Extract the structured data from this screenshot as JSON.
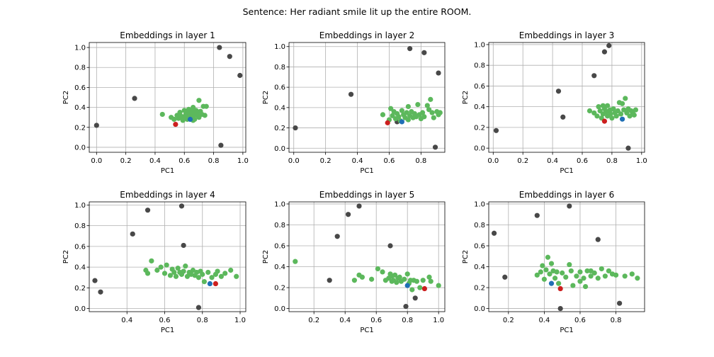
{
  "suptitle": "Sentence: Her radiant smile lit up the entire ROOM.",
  "colors": {
    "grey": "#484848",
    "green": "#5cb85c",
    "red": "#cc1f1f",
    "blue": "#1f6fb5",
    "grid": "#b0b0b0"
  },
  "chart_data": [
    {
      "type": "scatter",
      "title": "Embeddings in layer 1",
      "xlabel": "PC1",
      "ylabel": "PC2",
      "xlim": [
        -0.05,
        1.02
      ],
      "ylim": [
        -0.05,
        1.05
      ],
      "xticks": [
        0.0,
        0.2,
        0.4,
        0.6,
        0.8,
        1.0
      ],
      "xticklabels": [
        "0.0",
        "0.2",
        "0.4",
        "0.6",
        "0.8",
        "1.0"
      ],
      "yticks": [
        0.0,
        0.2,
        0.4,
        0.6,
        0.8,
        1.0
      ],
      "yticklabels": [
        "0.0",
        "0.2",
        "0.4",
        "0.6",
        "0.8",
        "1.0"
      ],
      "grid": true,
      "grey": [
        [
          0.0,
          0.22
        ],
        [
          0.26,
          0.49
        ],
        [
          0.84,
          1.0
        ],
        [
          0.91,
          0.91
        ],
        [
          0.98,
          0.72
        ],
        [
          0.85,
          0.02
        ]
      ],
      "green": [
        [
          0.45,
          0.33
        ],
        [
          0.51,
          0.3
        ],
        [
          0.53,
          0.28
        ],
        [
          0.55,
          0.32
        ],
        [
          0.56,
          0.29
        ],
        [
          0.57,
          0.35
        ],
        [
          0.58,
          0.31
        ],
        [
          0.59,
          0.27
        ],
        [
          0.6,
          0.3
        ],
        [
          0.6,
          0.37
        ],
        [
          0.61,
          0.33
        ],
        [
          0.62,
          0.28
        ],
        [
          0.62,
          0.35
        ],
        [
          0.63,
          0.31
        ],
        [
          0.63,
          0.38
        ],
        [
          0.64,
          0.33
        ],
        [
          0.65,
          0.29
        ],
        [
          0.65,
          0.36
        ],
        [
          0.66,
          0.31
        ],
        [
          0.66,
          0.4
        ],
        [
          0.67,
          0.34
        ],
        [
          0.67,
          0.28
        ],
        [
          0.68,
          0.37
        ],
        [
          0.69,
          0.32
        ],
        [
          0.69,
          0.35
        ],
        [
          0.7,
          0.47
        ],
        [
          0.7,
          0.3
        ],
        [
          0.71,
          0.36
        ],
        [
          0.72,
          0.33
        ],
        [
          0.73,
          0.41
        ],
        [
          0.74,
          0.32
        ],
        [
          0.75,
          0.41
        ],
        [
          0.66,
          0.27
        ]
      ],
      "red": [
        [
          0.54,
          0.23
        ]
      ],
      "blue": [
        [
          0.64,
          0.28
        ]
      ]
    },
    {
      "type": "scatter",
      "title": "Embeddings in layer 2",
      "xlabel": "PC1",
      "ylabel": "PC2",
      "xlim": [
        -0.03,
        0.95
      ],
      "ylim": [
        -0.04,
        1.04
      ],
      "xticks": [
        0.0,
        0.2,
        0.4,
        0.6,
        0.8
      ],
      "xticklabels": [
        "0.0",
        "0.2",
        "0.4",
        "0.6",
        "0.8"
      ],
      "yticks": [
        0.0,
        0.2,
        0.4,
        0.6,
        0.8,
        1.0
      ],
      "yticklabels": [
        "0.0",
        "0.2",
        "0.4",
        "0.6",
        "0.8",
        "1.0"
      ],
      "grid": true,
      "grey": [
        [
          0.01,
          0.2
        ],
        [
          0.36,
          0.53
        ],
        [
          0.73,
          0.98
        ],
        [
          0.82,
          0.94
        ],
        [
          0.91,
          0.74
        ],
        [
          0.89,
          0.01
        ],
        [
          0.65,
          0.26
        ]
      ],
      "green": [
        [
          0.56,
          0.33
        ],
        [
          0.6,
          0.28
        ],
        [
          0.61,
          0.39
        ],
        [
          0.62,
          0.32
        ],
        [
          0.63,
          0.36
        ],
        [
          0.64,
          0.29
        ],
        [
          0.65,
          0.34
        ],
        [
          0.66,
          0.31
        ],
        [
          0.67,
          0.27
        ],
        [
          0.68,
          0.37
        ],
        [
          0.69,
          0.33
        ],
        [
          0.7,
          0.3
        ],
        [
          0.71,
          0.35
        ],
        [
          0.72,
          0.28
        ],
        [
          0.72,
          0.41
        ],
        [
          0.73,
          0.32
        ],
        [
          0.74,
          0.36
        ],
        [
          0.75,
          0.3
        ],
        [
          0.76,
          0.34
        ],
        [
          0.77,
          0.31
        ],
        [
          0.78,
          0.43
        ],
        [
          0.79,
          0.33
        ],
        [
          0.8,
          0.29
        ],
        [
          0.81,
          0.35
        ],
        [
          0.82,
          0.31
        ],
        [
          0.84,
          0.42
        ],
        [
          0.85,
          0.38
        ],
        [
          0.86,
          0.48
        ],
        [
          0.87,
          0.35
        ],
        [
          0.88,
          0.3
        ],
        [
          0.9,
          0.36
        ],
        [
          0.91,
          0.33
        ],
        [
          0.92,
          0.35
        ]
      ],
      "red": [
        [
          0.59,
          0.25
        ]
      ],
      "blue": [
        [
          0.68,
          0.26
        ]
      ]
    },
    {
      "type": "scatter",
      "title": "Embeddings in layer 3",
      "xlabel": "PC1",
      "ylabel": "PC2",
      "xlim": [
        -0.03,
        1.02
      ],
      "ylim": [
        -0.04,
        1.02
      ],
      "xticks": [
        0.0,
        0.2,
        0.4,
        0.6,
        0.8,
        1.0
      ],
      "xticklabels": [
        "0.0",
        "0.2",
        "0.4",
        "0.6",
        "0.8",
        "1.0"
      ],
      "yticks": [
        0.0,
        0.2,
        0.4,
        0.6,
        0.8,
        1.0
      ],
      "yticklabels": [
        "0.0",
        "0.2",
        "0.4",
        "0.6",
        "0.8",
        "1.0"
      ],
      "grid": true,
      "grey": [
        [
          0.02,
          0.17
        ],
        [
          0.44,
          0.55
        ],
        [
          0.47,
          0.3
        ],
        [
          0.68,
          0.7
        ],
        [
          0.75,
          0.93
        ],
        [
          0.78,
          0.99
        ],
        [
          0.91,
          0.0
        ]
      ],
      "green": [
        [
          0.65,
          0.36
        ],
        [
          0.68,
          0.34
        ],
        [
          0.7,
          0.31
        ],
        [
          0.71,
          0.4
        ],
        [
          0.72,
          0.36
        ],
        [
          0.73,
          0.29
        ],
        [
          0.74,
          0.33
        ],
        [
          0.75,
          0.38
        ],
        [
          0.76,
          0.35
        ],
        [
          0.77,
          0.31
        ],
        [
          0.77,
          0.41
        ],
        [
          0.78,
          0.36
        ],
        [
          0.79,
          0.33
        ],
        [
          0.8,
          0.29
        ],
        [
          0.81,
          0.38
        ],
        [
          0.82,
          0.34
        ],
        [
          0.83,
          0.31
        ],
        [
          0.84,
          0.36
        ],
        [
          0.85,
          0.44
        ],
        [
          0.86,
          0.33
        ],
        [
          0.87,
          0.43
        ],
        [
          0.88,
          0.37
        ],
        [
          0.89,
          0.48
        ],
        [
          0.9,
          0.34
        ],
        [
          0.91,
          0.38
        ],
        [
          0.92,
          0.31
        ],
        [
          0.93,
          0.36
        ],
        [
          0.94,
          0.34
        ],
        [
          0.95,
          0.32
        ],
        [
          0.96,
          0.37
        ],
        [
          0.74,
          0.41
        ],
        [
          0.79,
          0.37
        ]
      ],
      "red": [
        [
          0.75,
          0.26
        ]
      ],
      "blue": [
        [
          0.87,
          0.28
        ]
      ]
    },
    {
      "type": "scatter",
      "title": "Embeddings in layer 4",
      "xlabel": "PC1",
      "ylabel": "PC2",
      "xlim": [
        0.2,
        1.03
      ],
      "ylim": [
        -0.03,
        1.03
      ],
      "xticks": [
        0.4,
        0.6,
        0.8,
        1.0
      ],
      "xticklabels": [
        "0.4",
        "0.6",
        "0.8",
        "1.0"
      ],
      "yticks": [
        0.0,
        0.2,
        0.4,
        0.6,
        0.8,
        1.0
      ],
      "yticklabels": [
        "0.0",
        "0.2",
        "0.4",
        "0.6",
        "0.8",
        "1.0"
      ],
      "grid": true,
      "grey": [
        [
          0.23,
          0.27
        ],
        [
          0.26,
          0.16
        ],
        [
          0.43,
          0.72
        ],
        [
          0.51,
          0.95
        ],
        [
          0.69,
          0.99
        ],
        [
          0.7,
          0.61
        ],
        [
          0.78,
          0.01
        ]
      ],
      "green": [
        [
          0.5,
          0.37
        ],
        [
          0.51,
          0.34
        ],
        [
          0.53,
          0.46
        ],
        [
          0.56,
          0.37
        ],
        [
          0.58,
          0.4
        ],
        [
          0.6,
          0.34
        ],
        [
          0.61,
          0.42
        ],
        [
          0.63,
          0.32
        ],
        [
          0.64,
          0.38
        ],
        [
          0.65,
          0.35
        ],
        [
          0.66,
          0.31
        ],
        [
          0.67,
          0.39
        ],
        [
          0.68,
          0.35
        ],
        [
          0.69,
          0.33
        ],
        [
          0.7,
          0.36
        ],
        [
          0.71,
          0.41
        ],
        [
          0.72,
          0.31
        ],
        [
          0.73,
          0.35
        ],
        [
          0.74,
          0.33
        ],
        [
          0.75,
          0.37
        ],
        [
          0.76,
          0.32
        ],
        [
          0.77,
          0.35
        ],
        [
          0.78,
          0.3
        ],
        [
          0.79,
          0.36
        ],
        [
          0.8,
          0.33
        ],
        [
          0.81,
          0.26
        ],
        [
          0.83,
          0.35
        ],
        [
          0.85,
          0.3
        ],
        [
          0.87,
          0.33
        ],
        [
          0.9,
          0.31
        ],
        [
          0.92,
          0.34
        ],
        [
          0.95,
          0.37
        ],
        [
          0.98,
          0.31
        ],
        [
          0.88,
          0.36
        ]
      ],
      "red": [
        [
          0.87,
          0.24
        ]
      ],
      "blue": [
        [
          0.84,
          0.24
        ]
      ]
    },
    {
      "type": "scatter",
      "title": "Embeddings in layer 5",
      "xlabel": "PC1",
      "ylabel": "PC2",
      "xlim": [
        0.04,
        1.04
      ],
      "ylim": [
        -0.03,
        1.02
      ],
      "xticks": [
        0.2,
        0.4,
        0.6,
        0.8,
        1.0
      ],
      "xticklabels": [
        "0.2",
        "0.4",
        "0.6",
        "0.8",
        "1.0"
      ],
      "yticks": [
        0.0,
        0.2,
        0.4,
        0.6,
        0.8,
        1.0
      ],
      "yticklabels": [
        "0.0",
        "0.2",
        "0.4",
        "0.6",
        "0.8",
        "1.0"
      ],
      "grid": true,
      "grey": [
        [
          0.3,
          0.27
        ],
        [
          0.35,
          0.69
        ],
        [
          0.42,
          0.9
        ],
        [
          0.49,
          0.98
        ],
        [
          0.69,
          0.6
        ],
        [
          0.79,
          0.02
        ],
        [
          0.85,
          0.1
        ]
      ],
      "green": [
        [
          0.08,
          0.45
        ],
        [
          0.46,
          0.27
        ],
        [
          0.49,
          0.32
        ],
        [
          0.51,
          0.3
        ],
        [
          0.57,
          0.28
        ],
        [
          0.61,
          0.38
        ],
        [
          0.64,
          0.35
        ],
        [
          0.66,
          0.27
        ],
        [
          0.68,
          0.29
        ],
        [
          0.69,
          0.33
        ],
        [
          0.7,
          0.31
        ],
        [
          0.71,
          0.27
        ],
        [
          0.72,
          0.32
        ],
        [
          0.73,
          0.25
        ],
        [
          0.74,
          0.29
        ],
        [
          0.75,
          0.3
        ],
        [
          0.76,
          0.26
        ],
        [
          0.78,
          0.28
        ],
        [
          0.8,
          0.33
        ],
        [
          0.81,
          0.24
        ],
        [
          0.82,
          0.27
        ],
        [
          0.83,
          0.18
        ],
        [
          0.84,
          0.27
        ],
        [
          0.86,
          0.26
        ],
        [
          0.88,
          0.2
        ],
        [
          0.9,
          0.27
        ],
        [
          0.94,
          0.3
        ],
        [
          0.95,
          0.26
        ],
        [
          1.0,
          0.22
        ],
        [
          0.7,
          0.26
        ]
      ],
      "red": [
        [
          0.91,
          0.19
        ]
      ],
      "blue": [
        [
          0.8,
          0.22
        ]
      ]
    },
    {
      "type": "scatter",
      "title": "Embeddings in layer 6",
      "xlabel": "PC1",
      "ylabel": "PC2",
      "xlim": [
        0.09,
        0.96
      ],
      "ylim": [
        -0.03,
        1.02
      ],
      "xticks": [
        0.2,
        0.4,
        0.6,
        0.8
      ],
      "xticklabels": [
        "0.2",
        "0.4",
        "0.6",
        "0.8"
      ],
      "yticks": [
        0.0,
        0.2,
        0.4,
        0.6,
        0.8,
        1.0
      ],
      "yticklabels": [
        "0.0",
        "0.2",
        "0.4",
        "0.6",
        "0.8",
        "1.0"
      ],
      "grid": true,
      "grey": [
        [
          0.12,
          0.72
        ],
        [
          0.18,
          0.3
        ],
        [
          0.36,
          0.89
        ],
        [
          0.49,
          0.0
        ],
        [
          0.54,
          0.98
        ],
        [
          0.7,
          0.66
        ],
        [
          0.82,
          0.05
        ]
      ],
      "green": [
        [
          0.36,
          0.32
        ],
        [
          0.38,
          0.35
        ],
        [
          0.39,
          0.41
        ],
        [
          0.4,
          0.28
        ],
        [
          0.41,
          0.37
        ],
        [
          0.42,
          0.49
        ],
        [
          0.43,
          0.33
        ],
        [
          0.44,
          0.43
        ],
        [
          0.45,
          0.36
        ],
        [
          0.46,
          0.29
        ],
        [
          0.47,
          0.35
        ],
        [
          0.48,
          0.24
        ],
        [
          0.5,
          0.34
        ],
        [
          0.52,
          0.3
        ],
        [
          0.54,
          0.42
        ],
        [
          0.55,
          0.36
        ],
        [
          0.56,
          0.22
        ],
        [
          0.58,
          0.31
        ],
        [
          0.6,
          0.35
        ],
        [
          0.62,
          0.29
        ],
        [
          0.63,
          0.21
        ],
        [
          0.64,
          0.36
        ],
        [
          0.66,
          0.31
        ],
        [
          0.68,
          0.34
        ],
        [
          0.7,
          0.29
        ],
        [
          0.72,
          0.38
        ],
        [
          0.74,
          0.31
        ],
        [
          0.76,
          0.36
        ],
        [
          0.78,
          0.33
        ],
        [
          0.8,
          0.32
        ],
        [
          0.85,
          0.31
        ],
        [
          0.89,
          0.33
        ],
        [
          0.92,
          0.29
        ],
        [
          0.6,
          0.26
        ],
        [
          0.66,
          0.36
        ]
      ],
      "red": [
        [
          0.49,
          0.19
        ]
      ],
      "blue": [
        [
          0.44,
          0.24
        ]
      ]
    }
  ]
}
